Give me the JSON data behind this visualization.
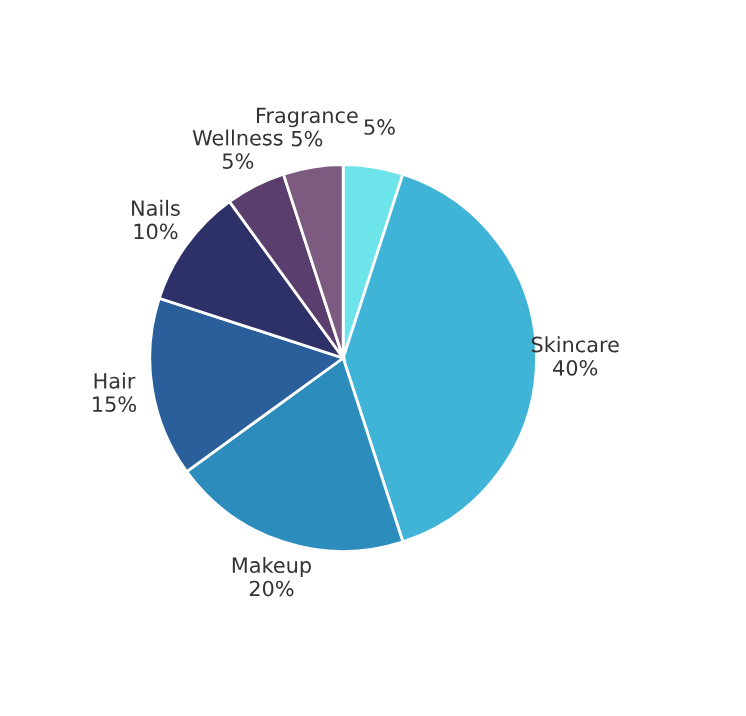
{
  "chart_data": {
    "type": "pie",
    "categories": [
      null,
      "Skincare",
      "Makeup",
      "Hair",
      "Nails",
      "Wellness",
      "Fragrance"
    ],
    "values": [
      5,
      40,
      20,
      15,
      10,
      5,
      5
    ],
    "colors": [
      "#6de3ea",
      "#3fb4d6",
      "#2c8cbb",
      "#2a5f9c",
      "#2d3168",
      "#5a3e6e",
      "#7d5b80"
    ],
    "value_labels": [
      "5%",
      "40%",
      "20%",
      "15%",
      "10%",
      "5%",
      "5%"
    ]
  }
}
